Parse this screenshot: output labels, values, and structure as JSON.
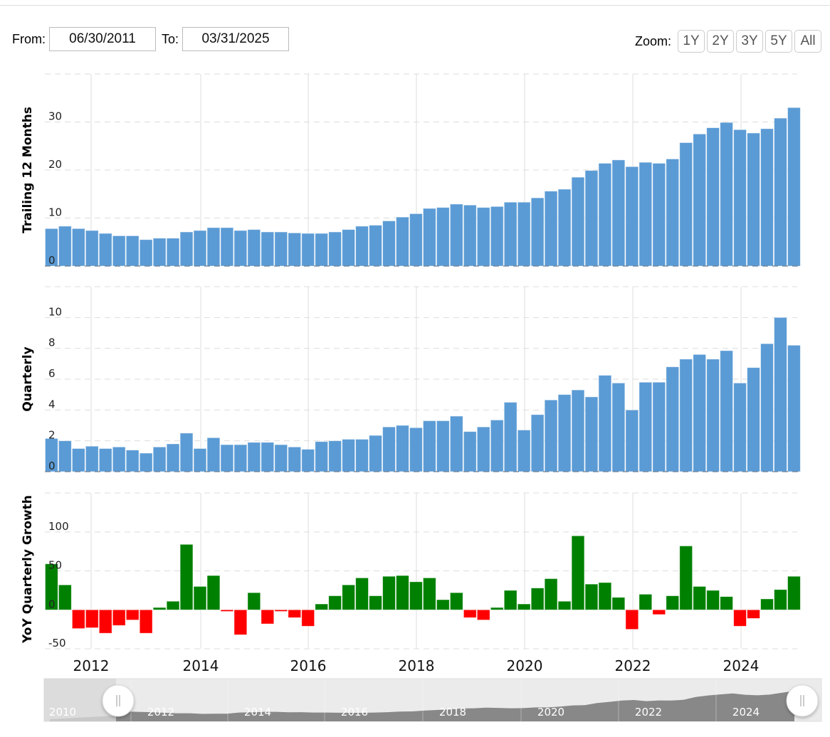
{
  "range_selector": {
    "from_label": "From:",
    "from_value": "06/30/2011",
    "to_label": "To:",
    "to_value": "03/31/2025"
  },
  "zoom_selector": {
    "label": "Zoom:",
    "buttons": [
      "1Y",
      "2Y",
      "3Y",
      "5Y",
      "All"
    ]
  },
  "colors": {
    "bar_blue": "#5b9bd5",
    "positive_green": "#008000",
    "negative_red": "#ff0000",
    "navigator_fill": "#888888"
  },
  "chart_data": [
    {
      "type": "bar",
      "title": "",
      "ylabel": "Trailing 12 Months",
      "xlabel": "",
      "ylim": [
        0,
        40
      ],
      "yticks": [
        0,
        10,
        20,
        30
      ],
      "grid": true,
      "x_ticks": [
        "2012",
        "2014",
        "2016",
        "2018",
        "2020",
        "2022",
        "2024"
      ],
      "x_start": "2011 Q2",
      "x_end": "2025 Q1",
      "values": [
        7.8,
        8.3,
        7.8,
        7.4,
        6.8,
        6.3,
        6.3,
        5.5,
        5.8,
        5.8,
        7.1,
        7.4,
        8.0,
        8.0,
        7.4,
        7.6,
        7.1,
        7.1,
        6.9,
        6.8,
        6.8,
        7.1,
        7.6,
        8.3,
        8.5,
        9.4,
        10.2,
        10.9,
        12.0,
        12.2,
        12.9,
        12.7,
        12.2,
        12.4,
        13.3,
        13.3,
        14.2,
        15.6,
        16.0,
        18.5,
        19.9,
        21.4,
        22.1,
        20.7,
        21.6,
        21.4,
        22.3,
        25.7,
        27.5,
        28.8,
        29.9,
        28.4,
        27.7,
        28.6,
        30.8,
        33.0
      ]
    },
    {
      "type": "bar",
      "title": "",
      "ylabel": "Quarterly",
      "xlabel": "",
      "ylim": [
        0,
        12
      ],
      "yticks": [
        0,
        2,
        4,
        6,
        8,
        10
      ],
      "grid": true,
      "x_start": "2011 Q2",
      "x_end": "2025 Q1",
      "values": [
        2.15,
        2.0,
        1.5,
        1.65,
        1.5,
        1.6,
        1.4,
        1.2,
        1.6,
        1.8,
        2.5,
        1.5,
        2.2,
        1.75,
        1.75,
        1.9,
        1.9,
        1.75,
        1.6,
        1.45,
        1.95,
        2.0,
        2.1,
        2.1,
        2.35,
        2.9,
        3.0,
        2.85,
        3.3,
        3.3,
        3.6,
        2.6,
        2.9,
        3.35,
        4.5,
        2.7,
        3.7,
        4.65,
        5.0,
        5.3,
        4.85,
        6.25,
        5.75,
        4.0,
        5.8,
        5.8,
        6.8,
        7.3,
        7.6,
        7.3,
        7.85,
        5.75,
        6.75,
        8.3,
        10.0,
        8.2
      ]
    },
    {
      "type": "bar",
      "title": "",
      "ylabel": "YoY Quarterly Growth",
      "xlabel": "",
      "ylim": [
        -50,
        150
      ],
      "yticks": [
        -50,
        0,
        50,
        100
      ],
      "grid": true,
      "x_start": "2011 Q2",
      "x_end": "2025 Q1",
      "values": [
        59,
        32,
        -24,
        -23,
        -30,
        -20,
        -13,
        -30,
        3,
        11,
        84,
        30,
        44,
        -2,
        -32,
        22,
        -18,
        -2,
        -10,
        -21,
        7.5,
        18,
        32,
        41,
        18,
        43,
        44,
        36,
        41,
        13,
        22,
        -10,
        -13,
        3,
        25,
        7.5,
        28,
        40,
        11,
        95,
        33,
        35,
        16,
        -25,
        20,
        -6,
        18,
        82,
        30,
        25,
        17,
        -21,
        -11,
        14,
        26,
        43
      ]
    }
  ],
  "navigator": {
    "labels": [
      "2010",
      "2012",
      "2014",
      "2016",
      "2018",
      "2020",
      "2022",
      "2024"
    ],
    "left_handle": "||",
    "right_handle": "||"
  }
}
